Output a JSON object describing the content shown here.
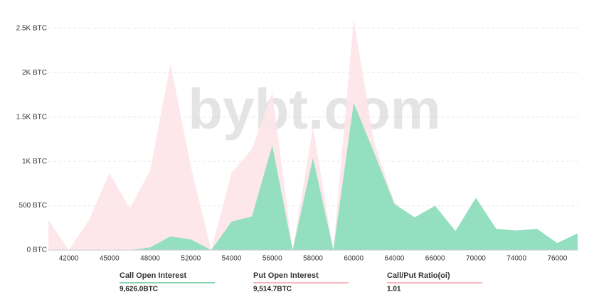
{
  "chart_data": {
    "type": "area",
    "watermark": "bybt.com",
    "categories": [
      null,
      "42000",
      null,
      "45000",
      null,
      "48000",
      null,
      "52000",
      null,
      "54000",
      null,
      "56000",
      null,
      "58000",
      null,
      "60000",
      null,
      "64000",
      null,
      "66000",
      null,
      "70000",
      null,
      "74000",
      null,
      "76000",
      null
    ],
    "series": [
      {
        "name": "Put Open Interest",
        "color": "#fde4e9",
        "values": [
          340,
          0,
          340,
          870,
          470,
          900,
          2100,
          940,
          0,
          870,
          1140,
          1780,
          0,
          1390,
          0,
          2600,
          1220,
          540,
          330,
          440,
          180,
          520,
          200,
          190,
          210,
          60,
          160
        ]
      },
      {
        "name": "Call Open Interest",
        "color": "#93dfc0",
        "values": [
          0,
          0,
          0,
          0,
          0,
          30,
          155,
          120,
          0,
          320,
          380,
          1180,
          0,
          1040,
          0,
          1660,
          1100,
          520,
          370,
          500,
          215,
          590,
          240,
          220,
          240,
          80,
          190
        ]
      }
    ],
    "ylim": [
      0,
      2700
    ],
    "yticks": [
      {
        "value": 0,
        "label": "0 BTC"
      },
      {
        "value": 500,
        "label": "500 BTC"
      },
      {
        "value": 1000,
        "label": "1K BTC"
      },
      {
        "value": 1500,
        "label": "1.5K BTC"
      },
      {
        "value": 2000,
        "label": "2K BTC"
      },
      {
        "value": 2500,
        "label": "2.5K BTC"
      }
    ],
    "grid": true,
    "summary": [
      {
        "label": "Call Open Interest",
        "value": "9,626.0BTC",
        "color": "#3fbf80"
      },
      {
        "label": "Put Open Interest",
        "value": "9,514.7BTC",
        "color": "#f08a9a"
      },
      {
        "label": "Call/Put Ratio(oi)",
        "value": "1.01",
        "color": "#f08a9a"
      }
    ]
  }
}
